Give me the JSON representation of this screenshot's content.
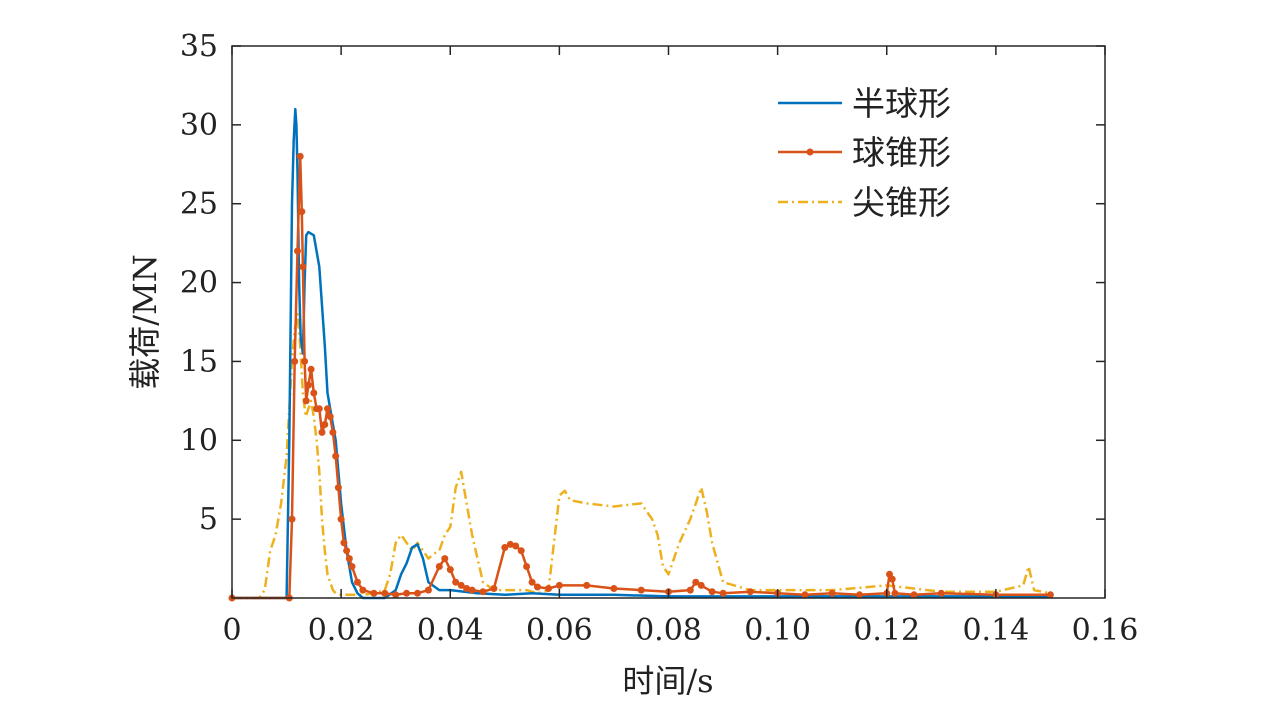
{
  "chart_data": {
    "type": "line",
    "xlabel": "时间/s",
    "ylabel": "载荷/MN",
    "xlim": [
      0,
      0.16
    ],
    "ylim": [
      0,
      35
    ],
    "xticks": [
      0,
      0.02,
      0.04,
      0.06,
      0.08,
      0.1,
      0.12,
      0.14,
      0.16
    ],
    "xtick_labels": [
      "0",
      "0.02",
      "0.04",
      "0.06",
      "0.08",
      "0.10",
      "0.12",
      "0.14",
      "0.16"
    ],
    "yticks": [
      5,
      10,
      15,
      20,
      25,
      30,
      35
    ],
    "ytick_labels": [
      "5",
      "10",
      "15",
      "20",
      "25",
      "30",
      "35"
    ],
    "grid": false,
    "legend_position": "top-right",
    "series": [
      {
        "name": "半球形",
        "color": "#0072BD",
        "style": "solid",
        "x": [
          0.0,
          0.01,
          0.0105,
          0.011,
          0.0113,
          0.0116,
          0.0118,
          0.012,
          0.0123,
          0.0126,
          0.013,
          0.0133,
          0.0136,
          0.014,
          0.0145,
          0.015,
          0.016,
          0.017,
          0.0175,
          0.018,
          0.0185,
          0.019,
          0.0195,
          0.02,
          0.021,
          0.022,
          0.023,
          0.024,
          0.026,
          0.028,
          0.03,
          0.031,
          0.032,
          0.033,
          0.034,
          0.035,
          0.036,
          0.038,
          0.04,
          0.045,
          0.05,
          0.055,
          0.06,
          0.07,
          0.08,
          0.09,
          0.1,
          0.12,
          0.14,
          0.15
        ],
        "values": [
          0,
          0,
          10,
          25,
          29,
          31,
          30,
          27,
          20,
          16.5,
          15.5,
          20,
          23,
          23.2,
          23.1,
          23,
          21,
          16,
          13,
          12,
          11,
          10,
          8,
          6,
          3,
          1,
          0.3,
          0,
          0,
          0,
          0.5,
          1.5,
          2.2,
          3.2,
          3.4,
          2.5,
          1,
          0.5,
          0.5,
          0.3,
          0.2,
          0.3,
          0.2,
          0.2,
          0.1,
          0.1,
          0.1,
          0.1,
          0.1,
          0.1
        ]
      },
      {
        "name": "球锥形",
        "color": "#D95319",
        "style": "solid-marker",
        "x": [
          0.0,
          0.0105,
          0.011,
          0.0115,
          0.012,
          0.0125,
          0.0128,
          0.013,
          0.0133,
          0.0136,
          0.014,
          0.0145,
          0.015,
          0.0155,
          0.016,
          0.0165,
          0.017,
          0.0175,
          0.018,
          0.0185,
          0.019,
          0.0195,
          0.02,
          0.0205,
          0.021,
          0.0215,
          0.022,
          0.023,
          0.024,
          0.026,
          0.028,
          0.03,
          0.032,
          0.034,
          0.036,
          0.038,
          0.039,
          0.04,
          0.041,
          0.042,
          0.043,
          0.044,
          0.046,
          0.048,
          0.05,
          0.051,
          0.052,
          0.053,
          0.054,
          0.055,
          0.056,
          0.058,
          0.06,
          0.065,
          0.07,
          0.075,
          0.08,
          0.084,
          0.085,
          0.086,
          0.088,
          0.09,
          0.095,
          0.1,
          0.105,
          0.11,
          0.115,
          0.12,
          0.1205,
          0.121,
          0.1215,
          0.125,
          0.13,
          0.14,
          0.15
        ],
        "values": [
          0,
          0,
          5,
          15,
          22,
          28,
          24.5,
          21,
          15,
          12.5,
          13.5,
          14.5,
          13,
          12,
          12,
          10.5,
          11,
          12,
          11.5,
          10.5,
          9,
          7,
          5,
          3.5,
          3,
          2.5,
          2,
          1,
          0.5,
          0.3,
          0.3,
          0.2,
          0.3,
          0.3,
          0.5,
          2,
          2.5,
          1.8,
          1,
          0.8,
          0.6,
          0.5,
          0.4,
          0.6,
          3.2,
          3.4,
          3.3,
          3.0,
          2.0,
          1.0,
          0.7,
          0.6,
          0.8,
          0.8,
          0.6,
          0.5,
          0.4,
          0.5,
          1.0,
          0.8,
          0.4,
          0.3,
          0.4,
          0.3,
          0.2,
          0.3,
          0.2,
          0.3,
          1.5,
          1.2,
          0.3,
          0.2,
          0.3,
          0.2,
          0.2
        ]
      },
      {
        "name": "尖锥形",
        "color": "#EDB120",
        "style": "dash-dot",
        "x": [
          0.0,
          0.005,
          0.006,
          0.007,
          0.008,
          0.009,
          0.01,
          0.011,
          0.0115,
          0.012,
          0.0125,
          0.013,
          0.0135,
          0.014,
          0.0145,
          0.015,
          0.0155,
          0.016,
          0.0165,
          0.017,
          0.0175,
          0.018,
          0.0185,
          0.019,
          0.02,
          0.022,
          0.024,
          0.026,
          0.028,
          0.029,
          0.03,
          0.031,
          0.032,
          0.033,
          0.034,
          0.035,
          0.036,
          0.037,
          0.038,
          0.039,
          0.04,
          0.041,
          0.042,
          0.043,
          0.044,
          0.045,
          0.046,
          0.048,
          0.05,
          0.052,
          0.054,
          0.056,
          0.058,
          0.06,
          0.061,
          0.062,
          0.065,
          0.07,
          0.075,
          0.077,
          0.078,
          0.079,
          0.08,
          0.082,
          0.084,
          0.085,
          0.086,
          0.087,
          0.088,
          0.09,
          0.095,
          0.1,
          0.11,
          0.12,
          0.13,
          0.14,
          0.145,
          0.146,
          0.147,
          0.15
        ],
        "values": [
          0,
          0,
          0.5,
          3,
          4,
          6,
          9,
          15,
          17,
          18,
          16,
          13,
          11.5,
          12,
          12.5,
          11.5,
          10,
          8,
          5,
          3,
          1.5,
          1,
          0.5,
          0.3,
          0.2,
          0.2,
          0.2,
          0.3,
          0.5,
          1.5,
          3.5,
          4.0,
          3.5,
          3.0,
          3.5,
          3.0,
          2.5,
          2.8,
          3.0,
          4.0,
          4.5,
          7.0,
          8.0,
          6.0,
          4.0,
          2.5,
          1.0,
          0.5,
          0.5,
          0.5,
          0.5,
          0.3,
          0.5,
          6.5,
          6.8,
          6.2,
          6.0,
          5.8,
          6.0,
          5.0,
          4.0,
          2.0,
          1.5,
          3.5,
          5.0,
          6.0,
          7.0,
          5.5,
          3.5,
          1.0,
          0.5,
          0.5,
          0.5,
          0.8,
          0.4,
          0.4,
          0.8,
          2.0,
          0.5,
          0.3
        ]
      }
    ]
  }
}
